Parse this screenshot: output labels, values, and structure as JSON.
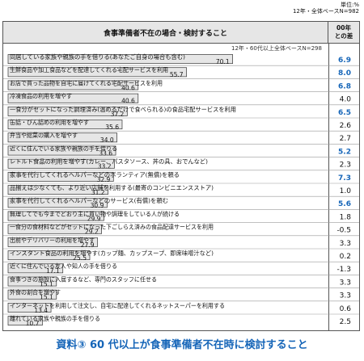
{
  "header": {
    "note_line1": "単位:%",
    "note_line2": "12年・全体ベースN=982",
    "title": "食事準備者不在の場合・検討すること",
    "diff_title_line1": "00年",
    "diff_title_line2": "との差"
  },
  "chart_data": {
    "type": "bar",
    "orientation": "horizontal",
    "series": [
      {
        "name": "12年・60代以上全体ベースN=298",
        "values": [
          70.1,
          55.7,
          40.6,
          40.6,
          37.2,
          35.6,
          34.0,
          33.6,
          33.2,
          32.9,
          31.2,
          30.9,
          29.9,
          29.2,
          27.9,
          25.5,
          17.1,
          15.1,
          15.1,
          13.4,
          10.7
        ]
      }
    ],
    "categories": [
      "同居している家族や親族の手を借りる(あなたご自身の場合も含む)",
      "生鮮食品や加工食品などを配達してくれる宅配サービスを利用",
      "お店で買った品物を自宅に届けてくれる宅配サービスを利用",
      "冷凍食品の利用を増やす",
      "一食分がセットになった調理済み(温めるだけで食べられる)の食品宅配サービスを利用",
      "缶詰・びん詰めの利用を増やす",
      "弁当や総菜の購入を増やす",
      "近くに住んでいる家族や親族の手を借りる",
      "レトルト食品の利用を増やす(カレー、パスタソース、丼の具、おでんなど)",
      "家事を代行してくれるヘルパーなどのボランティア(無償)を頼る",
      "品揃えは少なくても、より近い店舗を利用する(最寄のコンビニエンスストア)",
      "家事を代行してくれるヘルパーなどのサービス(有償)を頼む",
      "無理してでも今までどおり主に買い物や調理をしている人が続ける",
      "一食分の食材料などがセットになった下ごしらえ済みの食品配達サービスを利用",
      "出前やデリバリーの利用を増やす",
      "インスタント食品の利用を増やす(カップ麺、カップスープ、即席味噌汁など)",
      "近くに住んでいる友人や知人の手を借りる",
      "食事つきの施設に入居するなど、専門のスタッフに任せる",
      "外食の割合を増やす",
      "インターネットを利用して注文し、自宅に配達してくれるネットスーパーを利用する",
      "離れている家族や親族の手を借りる"
    ],
    "diff_values": [
      "6.9",
      "8.0",
      "6.8",
      "4.0",
      "6.5",
      "2.6",
      "2.7",
      "5.2",
      "2.3",
      "7.3",
      "1.0",
      "5.6",
      "1.8",
      "-0.5",
      "3.3",
      "0.2",
      "-1.3",
      "3.3",
      "3.3",
      "0.6",
      "2.5"
    ],
    "diff_colors": [
      "#1565b8",
      "#1565b8",
      "#1565b8",
      "#111111",
      "#1565b8",
      "#111111",
      "#111111",
      "#1565b8",
      "#111111",
      "#1565b8",
      "#111111",
      "#1565b8",
      "#111111",
      "#111111",
      "#111111",
      "#111111",
      "#111111",
      "#111111",
      "#111111",
      "#111111",
      "#111111"
    ],
    "xlim": [
      0,
      100
    ],
    "bar_color": "#e6e6e6",
    "bar_stroke": "#333333"
  },
  "caption": "資料③ 60 代以上が食事準備者不在時に検討すること"
}
